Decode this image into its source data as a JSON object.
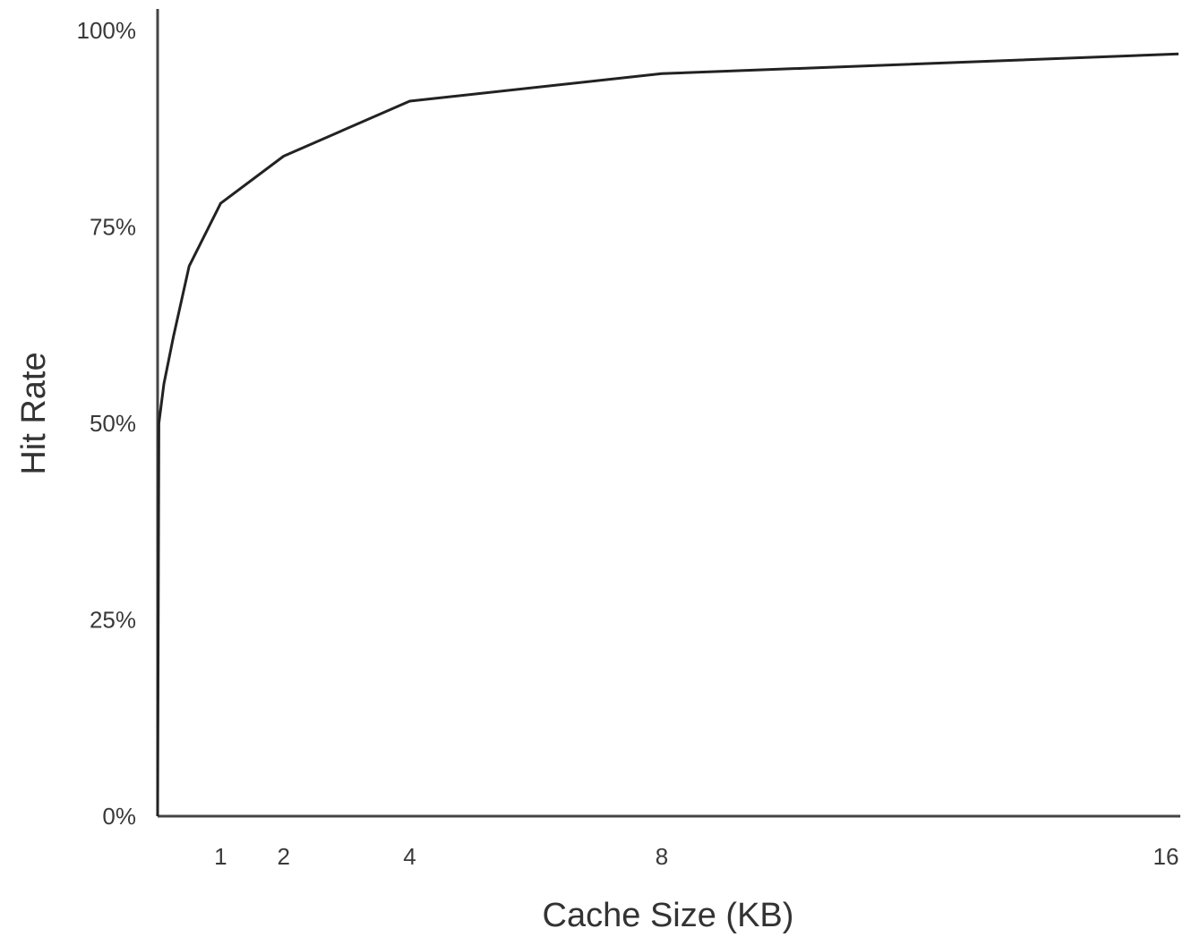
{
  "chart_data": {
    "type": "line",
    "xlabel": "Cache Size (KB)",
    "ylabel": "Hit Rate",
    "x_ticks": [
      {
        "value": 1,
        "label": "1"
      },
      {
        "value": 2,
        "label": "2"
      },
      {
        "value": 4,
        "label": "4"
      },
      {
        "value": 8,
        "label": "8"
      },
      {
        "value": 16,
        "label": "16"
      }
    ],
    "y_ticks": [
      {
        "value": 0,
        "label": "0%"
      },
      {
        "value": 25,
        "label": "25%"
      },
      {
        "value": 50,
        "label": "50%"
      },
      {
        "value": 75,
        "label": "75%"
      },
      {
        "value": 100,
        "label": "100%"
      }
    ],
    "xlim": [
      0,
      16.2
    ],
    "ylim": [
      0,
      100
    ],
    "grid": false,
    "legend": "none",
    "line_color": "#222222",
    "series": [
      {
        "x": [
          0,
          0.02,
          0.1,
          0.25,
          0.5,
          1,
          2,
          4,
          8,
          16.2
        ],
        "y": [
          0,
          50,
          55,
          61,
          70,
          78,
          84,
          91,
          94.5,
          97
        ]
      }
    ]
  }
}
